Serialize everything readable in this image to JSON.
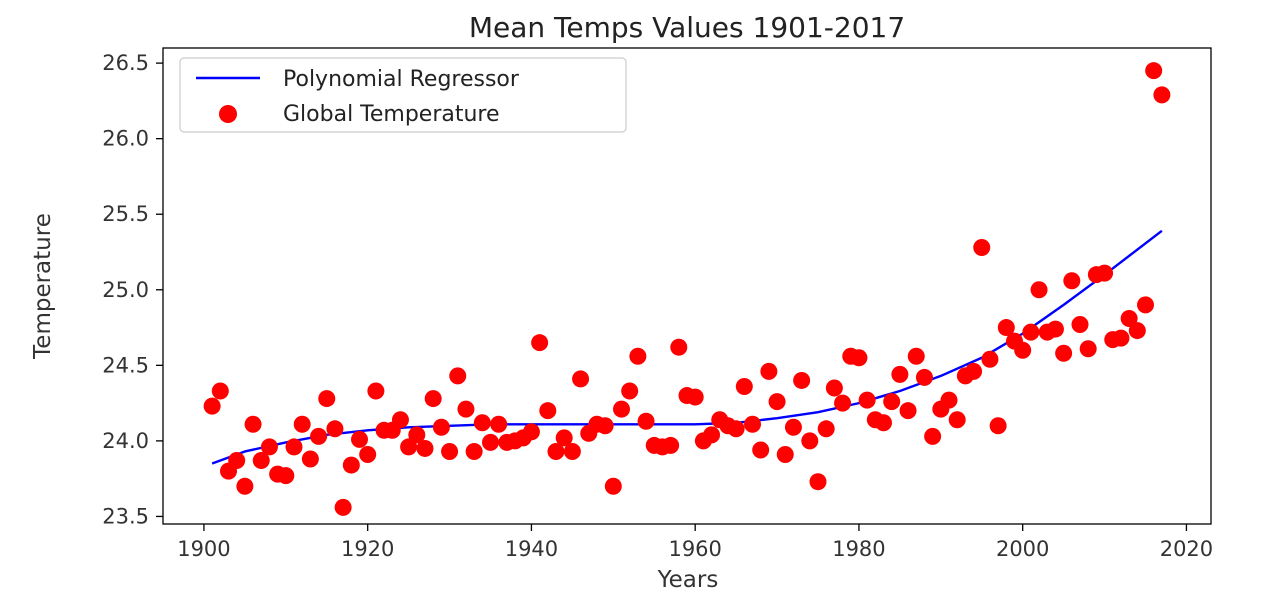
{
  "chart_data": {
    "type": "scatter",
    "title": "Mean Temps Values 1901-2017",
    "xlabel": "Years",
    "ylabel": "Temperature",
    "xlim": [
      1895,
      2023
    ],
    "ylim": [
      23.45,
      26.6
    ],
    "xticks": [
      1900,
      1920,
      1940,
      1960,
      1980,
      2000,
      2020
    ],
    "xtick_labels": [
      "1900",
      "1920",
      "1940",
      "1960",
      "1980",
      "2000",
      "2020"
    ],
    "yticks": [
      23.5,
      24.0,
      24.5,
      25.0,
      25.5,
      26.0,
      26.5
    ],
    "ytick_labels": [
      "23.5",
      "24.0",
      "24.5",
      "25.0",
      "25.5",
      "26.0",
      "26.5"
    ],
    "grid": false,
    "legend_position": "top-left",
    "series": [
      {
        "name": "Polynomial Regressor",
        "kind": "line",
        "color": "#0000ff",
        "x": [
          1901,
          1905,
          1910,
          1915,
          1920,
          1925,
          1930,
          1935,
          1940,
          1945,
          1950,
          1955,
          1960,
          1965,
          1970,
          1975,
          1980,
          1985,
          1990,
          1995,
          2000,
          2005,
          2010,
          2017
        ],
        "y": [
          23.85,
          23.93,
          23.99,
          24.04,
          24.07,
          24.09,
          24.1,
          24.11,
          24.11,
          24.11,
          24.11,
          24.11,
          24.11,
          24.12,
          24.15,
          24.19,
          24.25,
          24.33,
          24.43,
          24.55,
          24.71,
          24.9,
          25.1,
          25.39
        ]
      },
      {
        "name": "Global Temperature",
        "kind": "scatter",
        "color": "#ff0000",
        "x": [
          1901,
          1902,
          1903,
          1904,
          1905,
          1906,
          1907,
          1908,
          1909,
          1910,
          1911,
          1912,
          1913,
          1914,
          1915,
          1916,
          1917,
          1918,
          1919,
          1920,
          1921,
          1922,
          1923,
          1924,
          1925,
          1926,
          1927,
          1928,
          1929,
          1930,
          1931,
          1932,
          1933,
          1934,
          1935,
          1936,
          1937,
          1938,
          1939,
          1940,
          1941,
          1942,
          1943,
          1944,
          1945,
          1946,
          1947,
          1948,
          1949,
          1950,
          1951,
          1952,
          1953,
          1954,
          1955,
          1956,
          1957,
          1958,
          1959,
          1960,
          1961,
          1962,
          1963,
          1964,
          1965,
          1966,
          1967,
          1968,
          1969,
          1970,
          1971,
          1972,
          1973,
          1974,
          1975,
          1976,
          1977,
          1978,
          1979,
          1980,
          1981,
          1982,
          1983,
          1984,
          1985,
          1986,
          1987,
          1988,
          1989,
          1990,
          1991,
          1992,
          1993,
          1994,
          1995,
          1996,
          1997,
          1998,
          1999,
          2000,
          2001,
          2002,
          2003,
          2004,
          2005,
          2006,
          2007,
          2008,
          2009,
          2010,
          2011,
          2012,
          2013,
          2014,
          2015,
          2016,
          2017
        ],
        "y": [
          24.23,
          24.33,
          23.8,
          23.87,
          23.7,
          24.11,
          23.87,
          23.96,
          23.78,
          23.77,
          23.96,
          24.11,
          23.88,
          24.03,
          24.28,
          24.08,
          23.56,
          23.84,
          24.01,
          23.91,
          24.33,
          24.07,
          24.07,
          24.14,
          23.96,
          24.04,
          23.95,
          24.28,
          24.09,
          23.93,
          24.43,
          24.21,
          23.93,
          24.12,
          23.99,
          24.11,
          23.99,
          24.0,
          24.02,
          24.06,
          24.65,
          24.2,
          23.93,
          24.02,
          23.93,
          24.41,
          24.05,
          24.11,
          24.1,
          23.7,
          24.21,
          24.33,
          24.56,
          24.13,
          23.97,
          23.96,
          23.97,
          24.62,
          24.3,
          24.29,
          24.0,
          24.04,
          24.14,
          24.1,
          24.08,
          24.36,
          24.11,
          23.94,
          24.46,
          24.26,
          23.91,
          24.09,
          24.4,
          24.0,
          23.73,
          24.08,
          24.35,
          24.25,
          24.56,
          24.55,
          24.27,
          24.14,
          24.12,
          24.26,
          24.44,
          24.2,
          24.56,
          24.42,
          24.03,
          24.21,
          24.27,
          24.14,
          24.43,
          24.46,
          25.28,
          24.54,
          24.1,
          24.75,
          24.66,
          24.6,
          24.72,
          25.0,
          24.72,
          24.74,
          24.58,
          25.06,
          24.77,
          24.61,
          25.1,
          25.11,
          24.67,
          24.68,
          24.81,
          24.73,
          24.9,
          26.45,
          26.29
        ]
      }
    ]
  }
}
